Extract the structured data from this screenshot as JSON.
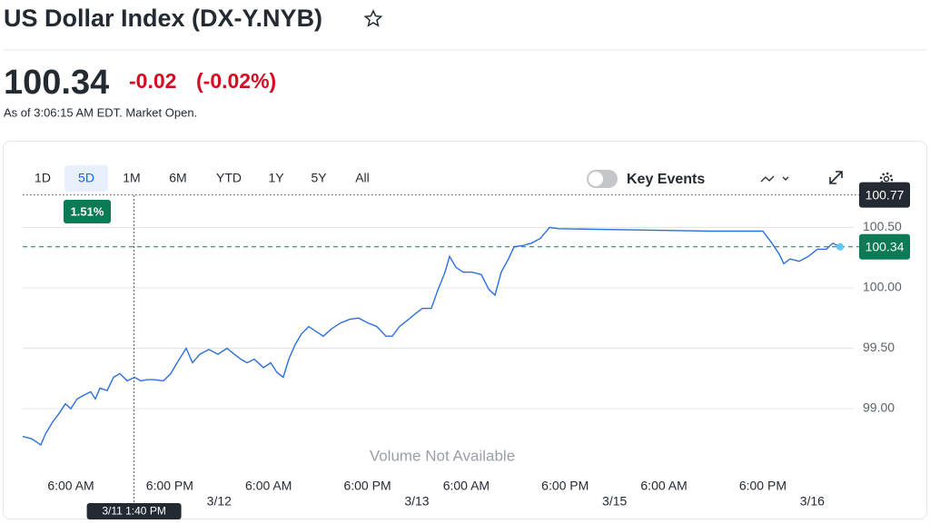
{
  "header": {
    "title": "US Dollar Index (DX-Y.NYB)"
  },
  "quote": {
    "price": "100.34",
    "change": "-0.02",
    "change_pct": "(-0.02%)",
    "as_of": "As of 3:06:15 AM EDT. Market Open."
  },
  "toolbar": {
    "ranges": [
      "1D",
      "5D",
      "1M",
      "6M",
      "YTD",
      "1Y",
      "5Y",
      "All"
    ],
    "selected": "5D",
    "key_events": "Key Events"
  },
  "chart_data": {
    "type": "line",
    "color": "#2b6fe0",
    "x": [
      0.15,
      1.26,
      2.36,
      2.91,
      3.79,
      4.56,
      5.34,
      6.0,
      6.75,
      7.53,
      8.41,
      8.97,
      9.53,
      10.41,
      11.18,
      11.95,
      12.84,
      13.72,
      14.49,
      15.26,
      16.14,
      17.24,
      18.12,
      18.9,
      20.0,
      20.77,
      21.65,
      22.76,
      23.86,
      24.96,
      25.84,
      26.62,
      27.39,
      28.27,
      29.37,
      30.25,
      31.02,
      31.79,
      32.46,
      33.23,
      34.0,
      34.88,
      35.76,
      36.64,
      37.63,
      38.74,
      39.84,
      40.94,
      42.05,
      43.15,
      44.25,
      45.02,
      45.9,
      47.01,
      47.89,
      48.66,
      49.76,
      50.54,
      51.42,
      51.97,
      52.74,
      53.63,
      54.73,
      55.83,
      56.71,
      57.48,
      58.25,
      59.13,
      59.8,
      60.79,
      61.9,
      63.0,
      64.1,
      65.2,
      74.57,
      83.39,
      90.0,
      91.11,
      91.99,
      92.54,
      93.31,
      94.41,
      95.51,
      96.62,
      97.72,
      98.49,
      99.38
    ],
    "values": [
      98.77,
      98.75,
      98.7,
      98.79,
      98.89,
      98.96,
      99.04,
      99.0,
      99.08,
      99.11,
      99.14,
      99.08,
      99.17,
      99.15,
      99.26,
      99.29,
      99.23,
      99.26,
      99.23,
      99.24,
      99.24,
      99.23,
      99.29,
      99.38,
      99.5,
      99.38,
      99.45,
      99.49,
      99.45,
      99.5,
      99.45,
      99.41,
      99.38,
      99.41,
      99.34,
      99.38,
      99.3,
      99.26,
      99.41,
      99.53,
      99.62,
      99.68,
      99.64,
      99.6,
      99.66,
      99.71,
      99.74,
      99.75,
      99.71,
      99.68,
      99.6,
      99.6,
      99.68,
      99.74,
      99.79,
      99.83,
      99.83,
      99.98,
      100.13,
      100.26,
      100.17,
      100.13,
      100.13,
      100.11,
      99.99,
      99.94,
      100.13,
      100.24,
      100.34,
      100.35,
      100.37,
      100.41,
      100.5,
      100.49,
      100.48,
      100.47,
      100.47,
      100.37,
      100.28,
      100.2,
      100.24,
      100.22,
      100.26,
      100.32,
      100.32,
      100.37,
      100.34
    ],
    "xlim": [
      0,
      101
    ],
    "xticks": [
      {
        "value": 6,
        "label": "6:00 AM"
      },
      {
        "value": 18,
        "label": "6:00 PM"
      },
      {
        "value": 24,
        "label": "3/12"
      },
      {
        "value": 30,
        "label": "6:00 AM"
      },
      {
        "value": 42,
        "label": "6:00 PM"
      },
      {
        "value": 48,
        "label": "3/13"
      },
      {
        "value": 54,
        "label": "6:00 AM"
      },
      {
        "value": 66,
        "label": "6:00 PM"
      },
      {
        "value": 72,
        "label": "3/15"
      },
      {
        "value": 78,
        "label": "6:00 AM"
      },
      {
        "value": 90,
        "label": "6:00 PM"
      },
      {
        "value": 96,
        "label": "3/16"
      }
    ],
    "ylim": [
      98.5,
      100.8
    ],
    "yticks": [
      {
        "value": 99,
        "label": "99.00"
      },
      {
        "value": 99.5,
        "label": "99.50"
      },
      {
        "value": 100,
        "label": "100.00"
      },
      {
        "value": 100.5,
        "label": "100.50"
      }
    ],
    "grid": true,
    "last_price": 100.34,
    "high": 100.77,
    "crosshair": {
      "x": 13.67,
      "label": "3/11 1:40 PM",
      "change": "1.51%"
    },
    "note": "Volume Not Available"
  }
}
